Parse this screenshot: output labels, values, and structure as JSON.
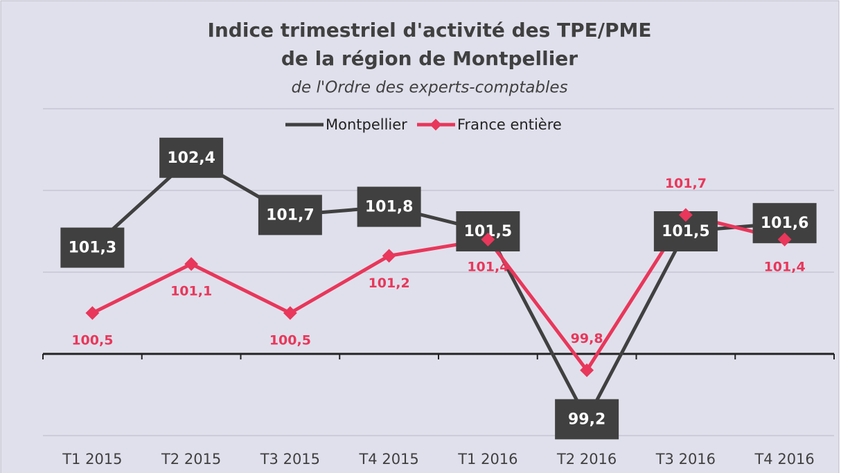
{
  "chart_data": {
    "type": "line",
    "title": [
      "Indice trimestriel d'activité des TPE/PME",
      "de la région de Montpellier"
    ],
    "subtitle": "de l'Ordre des experts-comptables",
    "categories": [
      "T1 2015",
      "T2 2015",
      "T3 2015",
      "T4 2015",
      "T1 2016",
      "T2 2016",
      "T3 2016",
      "T4 2016"
    ],
    "series": [
      {
        "name": "Montpellier",
        "color": "#404040",
        "values": [
          101.3,
          102.4,
          101.7,
          101.8,
          101.5,
          99.2,
          101.5,
          101.6
        ],
        "value_labels": [
          "101,3",
          "102,4",
          "101,7",
          "101,8",
          "101,5",
          "99,2",
          "101,5",
          "101,6"
        ]
      },
      {
        "name": "France entière",
        "color": "#e8375a",
        "values": [
          100.5,
          101.1,
          100.5,
          101.2,
          101.4,
          99.8,
          101.7,
          101.4
        ],
        "value_labels": [
          "100,5",
          "101,1",
          "100,5",
          "101,2",
          "101,4",
          "99,8",
          "101,7",
          "101,4"
        ]
      }
    ],
    "ylim": [
      99,
      103
    ],
    "yticks": [
      99,
      100,
      101,
      102,
      103
    ],
    "grid": true,
    "legend": "top"
  }
}
